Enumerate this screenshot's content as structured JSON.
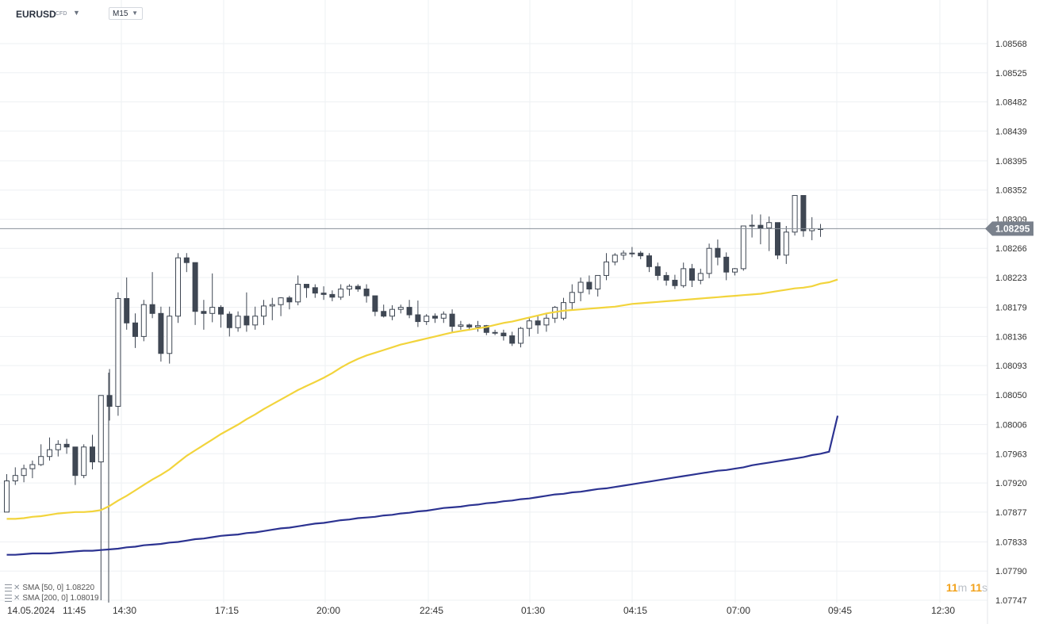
{
  "header": {
    "symbol": "EURUSD",
    "instrument_type": "CFD",
    "timeframe": "M15"
  },
  "chart_data": {
    "type": "candlestick",
    "title": "EURUSD",
    "timeframe": "M15",
    "y_ticks": [
      "1.08568",
      "1.08525",
      "1.08482",
      "1.08439",
      "1.08395",
      "1.08352",
      "1.08309",
      "1.08266",
      "1.08223",
      "1.08179",
      "1.08136",
      "1.08093",
      "1.08050",
      "1.08006",
      "1.07963",
      "1.07920",
      "1.07877",
      "1.07833",
      "1.07790",
      "1.07747"
    ],
    "x_ticks": [
      "14.05.2024",
      "11:45",
      "14:30",
      "17:15",
      "20:00",
      "22:45",
      "01:30",
      "04:15",
      "07:00",
      "09:45",
      "12:30"
    ],
    "ylim": [
      1.07747,
      1.086
    ],
    "current_price": "1.08295",
    "candles_ohlc": [
      [
        1.07877,
        1.07933,
        1.07877,
        1.07923
      ],
      [
        1.07923,
        1.07943,
        1.07917,
        1.07931
      ],
      [
        1.07931,
        1.07947,
        1.07921,
        1.07941
      ],
      [
        1.07941,
        1.07953,
        1.07927,
        1.07947
      ],
      [
        1.07947,
        1.07977,
        1.07945,
        1.07959
      ],
      [
        1.07959,
        1.07987,
        1.07953,
        1.07969
      ],
      [
        1.07969,
        1.07983,
        1.07959,
        1.07977
      ],
      [
        1.07977,
        1.07985,
        1.07963,
        1.07973
      ],
      [
        1.07973,
        1.07973,
        1.07917,
        1.07931
      ],
      [
        1.07931,
        1.07977,
        1.07927,
        1.07973
      ],
      [
        1.07973,
        1.07991,
        1.0794,
        1.07951
      ],
      [
        1.07951,
        1.08049,
        1.07747,
        1.08049
      ],
      [
        1.08049,
        1.08088,
        1.08012,
        1.08033
      ],
      [
        1.08033,
        1.08201,
        1.08019,
        1.08192
      ],
      [
        1.08192,
        1.08223,
        1.08146,
        1.08156
      ],
      [
        1.08156,
        1.0817,
        1.08119,
        1.08136
      ],
      [
        1.08136,
        1.0819,
        1.08129,
        1.08183
      ],
      [
        1.08183,
        1.08231,
        1.08163,
        1.0817
      ],
      [
        1.0817,
        1.0818,
        1.08099,
        1.08111
      ],
      [
        1.08111,
        1.0818,
        1.08096,
        1.08166
      ],
      [
        1.08166,
        1.08259,
        1.08156,
        1.08252
      ],
      [
        1.08252,
        1.08259,
        1.08231,
        1.08245
      ],
      [
        1.08245,
        1.08245,
        1.08153,
        1.08173
      ],
      [
        1.08173,
        1.0819,
        1.08146,
        1.0817
      ],
      [
        1.0817,
        1.08229,
        1.08157,
        1.08179
      ],
      [
        1.08179,
        1.08182,
        1.08149,
        1.08169
      ],
      [
        1.08169,
        1.08173,
        1.08136,
        1.08149
      ],
      [
        1.08149,
        1.08173,
        1.08143,
        1.08166
      ],
      [
        1.08166,
        1.08201,
        1.08143,
        1.08153
      ],
      [
        1.08153,
        1.0818,
        1.08146,
        1.08166
      ],
      [
        1.08166,
        1.0819,
        1.08153,
        1.08181
      ],
      [
        1.08181,
        1.08193,
        1.0816,
        1.08183
      ],
      [
        1.08183,
        1.08194,
        1.08166,
        1.08193
      ],
      [
        1.08193,
        1.08196,
        1.08176,
        1.08187
      ],
      [
        1.08187,
        1.08226,
        1.08182,
        1.08213
      ],
      [
        1.08213,
        1.08213,
        1.08193,
        1.08208
      ],
      [
        1.08208,
        1.08213,
        1.08193,
        1.082
      ],
      [
        1.082,
        1.0821,
        1.0819,
        1.08198
      ],
      [
        1.08198,
        1.08204,
        1.08188,
        1.08194
      ],
      [
        1.08194,
        1.08213,
        1.0819,
        1.08206
      ],
      [
        1.08206,
        1.08213,
        1.08196,
        1.0821
      ],
      [
        1.0821,
        1.08213,
        1.08202,
        1.08206
      ],
      [
        1.08206,
        1.08213,
        1.08186,
        1.08196
      ],
      [
        1.08196,
        1.08196,
        1.08166,
        1.08173
      ],
      [
        1.08173,
        1.08183,
        1.08164,
        1.08166
      ],
      [
        1.08166,
        1.08182,
        1.0816,
        1.08176
      ],
      [
        1.08176,
        1.08183,
        1.0817,
        1.08179
      ],
      [
        1.08179,
        1.0819,
        1.08163,
        1.08168
      ],
      [
        1.08168,
        1.08189,
        1.0815,
        1.08158
      ],
      [
        1.08158,
        1.08169,
        1.08153,
        1.08166
      ],
      [
        1.08166,
        1.0817,
        1.08156,
        1.08163
      ],
      [
        1.08163,
        1.08173,
        1.08156,
        1.08169
      ],
      [
        1.08169,
        1.08176,
        1.08143,
        1.08151
      ],
      [
        1.08151,
        1.08159,
        1.08146,
        1.08153
      ],
      [
        1.08153,
        1.08155,
        1.08145,
        1.0815
      ],
      [
        1.0815,
        1.08159,
        1.08143,
        1.08152
      ],
      [
        1.08152,
        1.08153,
        1.08138,
        1.08142
      ],
      [
        1.08142,
        1.08146,
        1.08138,
        1.08141
      ],
      [
        1.08141,
        1.08146,
        1.0813,
        1.08137
      ],
      [
        1.08137,
        1.08143,
        1.08122,
        1.08126
      ],
      [
        1.08126,
        1.0815,
        1.0812,
        1.08148
      ],
      [
        1.08148,
        1.08163,
        1.08136,
        1.08159
      ],
      [
        1.08159,
        1.08166,
        1.0814,
        1.08153
      ],
      [
        1.08153,
        1.0817,
        1.08143,
        1.08163
      ],
      [
        1.08163,
        1.08181,
        1.08156,
        1.08179
      ],
      [
        1.08163,
        1.08193,
        1.0816,
        1.08186
      ],
      [
        1.08186,
        1.08213,
        1.08175,
        1.08201
      ],
      [
        1.08201,
        1.08223,
        1.08188,
        1.08216
      ],
      [
        1.08216,
        1.08226,
        1.08198,
        1.08206
      ],
      [
        1.08206,
        1.08226,
        1.08195,
        1.08226
      ],
      [
        1.08226,
        1.08259,
        1.08219,
        1.08246
      ],
      [
        1.08246,
        1.08259,
        1.08241,
        1.08256
      ],
      [
        1.08256,
        1.08263,
        1.08249,
        1.08259
      ],
      [
        1.08259,
        1.08268,
        1.08253,
        1.08259
      ],
      [
        1.08259,
        1.08262,
        1.0825,
        1.08255
      ],
      [
        1.08255,
        1.08259,
        1.08231,
        1.08239
      ],
      [
        1.08239,
        1.08245,
        1.08219,
        1.08226
      ],
      [
        1.08226,
        1.08231,
        1.08211,
        1.08219
      ],
      [
        1.08219,
        1.08227,
        1.08206,
        1.08211
      ],
      [
        1.08211,
        1.08245,
        1.08208,
        1.08236
      ],
      [
        1.08236,
        1.08243,
        1.08209,
        1.08219
      ],
      [
        1.08219,
        1.08236,
        1.08213,
        1.08229
      ],
      [
        1.08229,
        1.08273,
        1.08222,
        1.08266
      ],
      [
        1.08266,
        1.08279,
        1.08241,
        1.08253
      ],
      [
        1.08253,
        1.0826,
        1.08219,
        1.08231
      ],
      [
        1.08231,
        1.08237,
        1.08226,
        1.08236
      ],
      [
        1.08236,
        1.08299,
        1.08233,
        1.08299
      ],
      [
        1.08299,
        1.08316,
        1.08282,
        1.083
      ],
      [
        1.083,
        1.08316,
        1.08272,
        1.08296
      ],
      [
        1.08296,
        1.08313,
        1.08262,
        1.08304
      ],
      [
        1.08304,
        1.08304,
        1.0825,
        1.08256
      ],
      [
        1.08256,
        1.08299,
        1.08243,
        1.0829
      ],
      [
        1.0829,
        1.08344,
        1.08285,
        1.08344
      ],
      [
        1.08344,
        1.08344,
        1.08283,
        1.08292
      ],
      [
        1.08292,
        1.08312,
        1.08278,
        1.08295
      ],
      [
        1.08295,
        1.08302,
        1.08283,
        1.08295
      ]
    ],
    "series": [
      {
        "name": "SMA [50, 0]",
        "last_value": "1.08220",
        "color": "#f2d43c",
        "values": [
          1.07867,
          1.07867,
          1.07868,
          1.0787,
          1.07871,
          1.07873,
          1.07875,
          1.07876,
          1.07877,
          1.07877,
          1.07878,
          1.0788,
          1.07886,
          1.07894,
          1.07901,
          1.07909,
          1.07917,
          1.07925,
          1.07932,
          1.0794,
          1.0795,
          1.0796,
          1.07968,
          1.07976,
          1.07984,
          1.07992,
          1.07999,
          1.08006,
          1.08014,
          1.08021,
          1.08029,
          1.08036,
          1.08043,
          1.0805,
          1.08057,
          1.08063,
          1.08069,
          1.08075,
          1.08082,
          1.0809,
          1.08097,
          1.08103,
          1.08108,
          1.08112,
          1.08116,
          1.0812,
          1.08124,
          1.08127,
          1.0813,
          1.08133,
          1.08136,
          1.08139,
          1.08142,
          1.08144,
          1.08146,
          1.08148,
          1.0815,
          1.08153,
          1.08156,
          1.08158,
          1.08161,
          1.08164,
          1.08167,
          1.0817,
          1.08172,
          1.08174,
          1.08175,
          1.08176,
          1.08177,
          1.08178,
          1.08179,
          1.0818,
          1.08182,
          1.08184,
          1.08185,
          1.08186,
          1.08187,
          1.08188,
          1.08189,
          1.0819,
          1.08191,
          1.08192,
          1.08193,
          1.08194,
          1.08195,
          1.08196,
          1.08197,
          1.08198,
          1.08199,
          1.08201,
          1.08203,
          1.08205,
          1.08207,
          1.08208,
          1.0821,
          1.08214,
          1.08216,
          1.0822
        ]
      },
      {
        "name": "SMA [200, 0]",
        "last_value": "1.08019",
        "color": "#2c3391",
        "values": [
          1.07814,
          1.07814,
          1.07815,
          1.07816,
          1.07816,
          1.07816,
          1.07817,
          1.07818,
          1.07819,
          1.0782,
          1.0782,
          1.07821,
          1.07822,
          1.07823,
          1.07825,
          1.07826,
          1.07828,
          1.07829,
          1.0783,
          1.07832,
          1.07833,
          1.07835,
          1.07837,
          1.07838,
          1.0784,
          1.07842,
          1.07843,
          1.07844,
          1.07846,
          1.07847,
          1.07849,
          1.07851,
          1.07853,
          1.07854,
          1.07856,
          1.07858,
          1.0786,
          1.07861,
          1.07863,
          1.07865,
          1.07866,
          1.07868,
          1.07869,
          1.0787,
          1.07872,
          1.07873,
          1.07875,
          1.07876,
          1.07878,
          1.07879,
          1.07881,
          1.07883,
          1.07884,
          1.07885,
          1.07887,
          1.07888,
          1.0789,
          1.07891,
          1.07893,
          1.07894,
          1.07896,
          1.07897,
          1.07899,
          1.07901,
          1.07903,
          1.07904,
          1.07906,
          1.07907,
          1.07909,
          1.07911,
          1.07912,
          1.07914,
          1.07916,
          1.07918,
          1.0792,
          1.07922,
          1.07924,
          1.07926,
          1.07928,
          1.0793,
          1.07932,
          1.07934,
          1.07936,
          1.07938,
          1.07939,
          1.07941,
          1.07943,
          1.07946,
          1.07948,
          1.0795,
          1.07952,
          1.07954,
          1.07956,
          1.07958,
          1.07961,
          1.07963,
          1.07966,
          1.08019
        ]
      }
    ],
    "grid": true,
    "legend_position": "bottom-left"
  },
  "countdown": {
    "minutes": "11",
    "min_unit": "m",
    "seconds": "11",
    "sec_unit": "s"
  },
  "colors": {
    "bull_body": "#ffffff",
    "bear_body": "#3f4753",
    "price_tag": "#7a818c",
    "countdown": "#f2a21b"
  }
}
